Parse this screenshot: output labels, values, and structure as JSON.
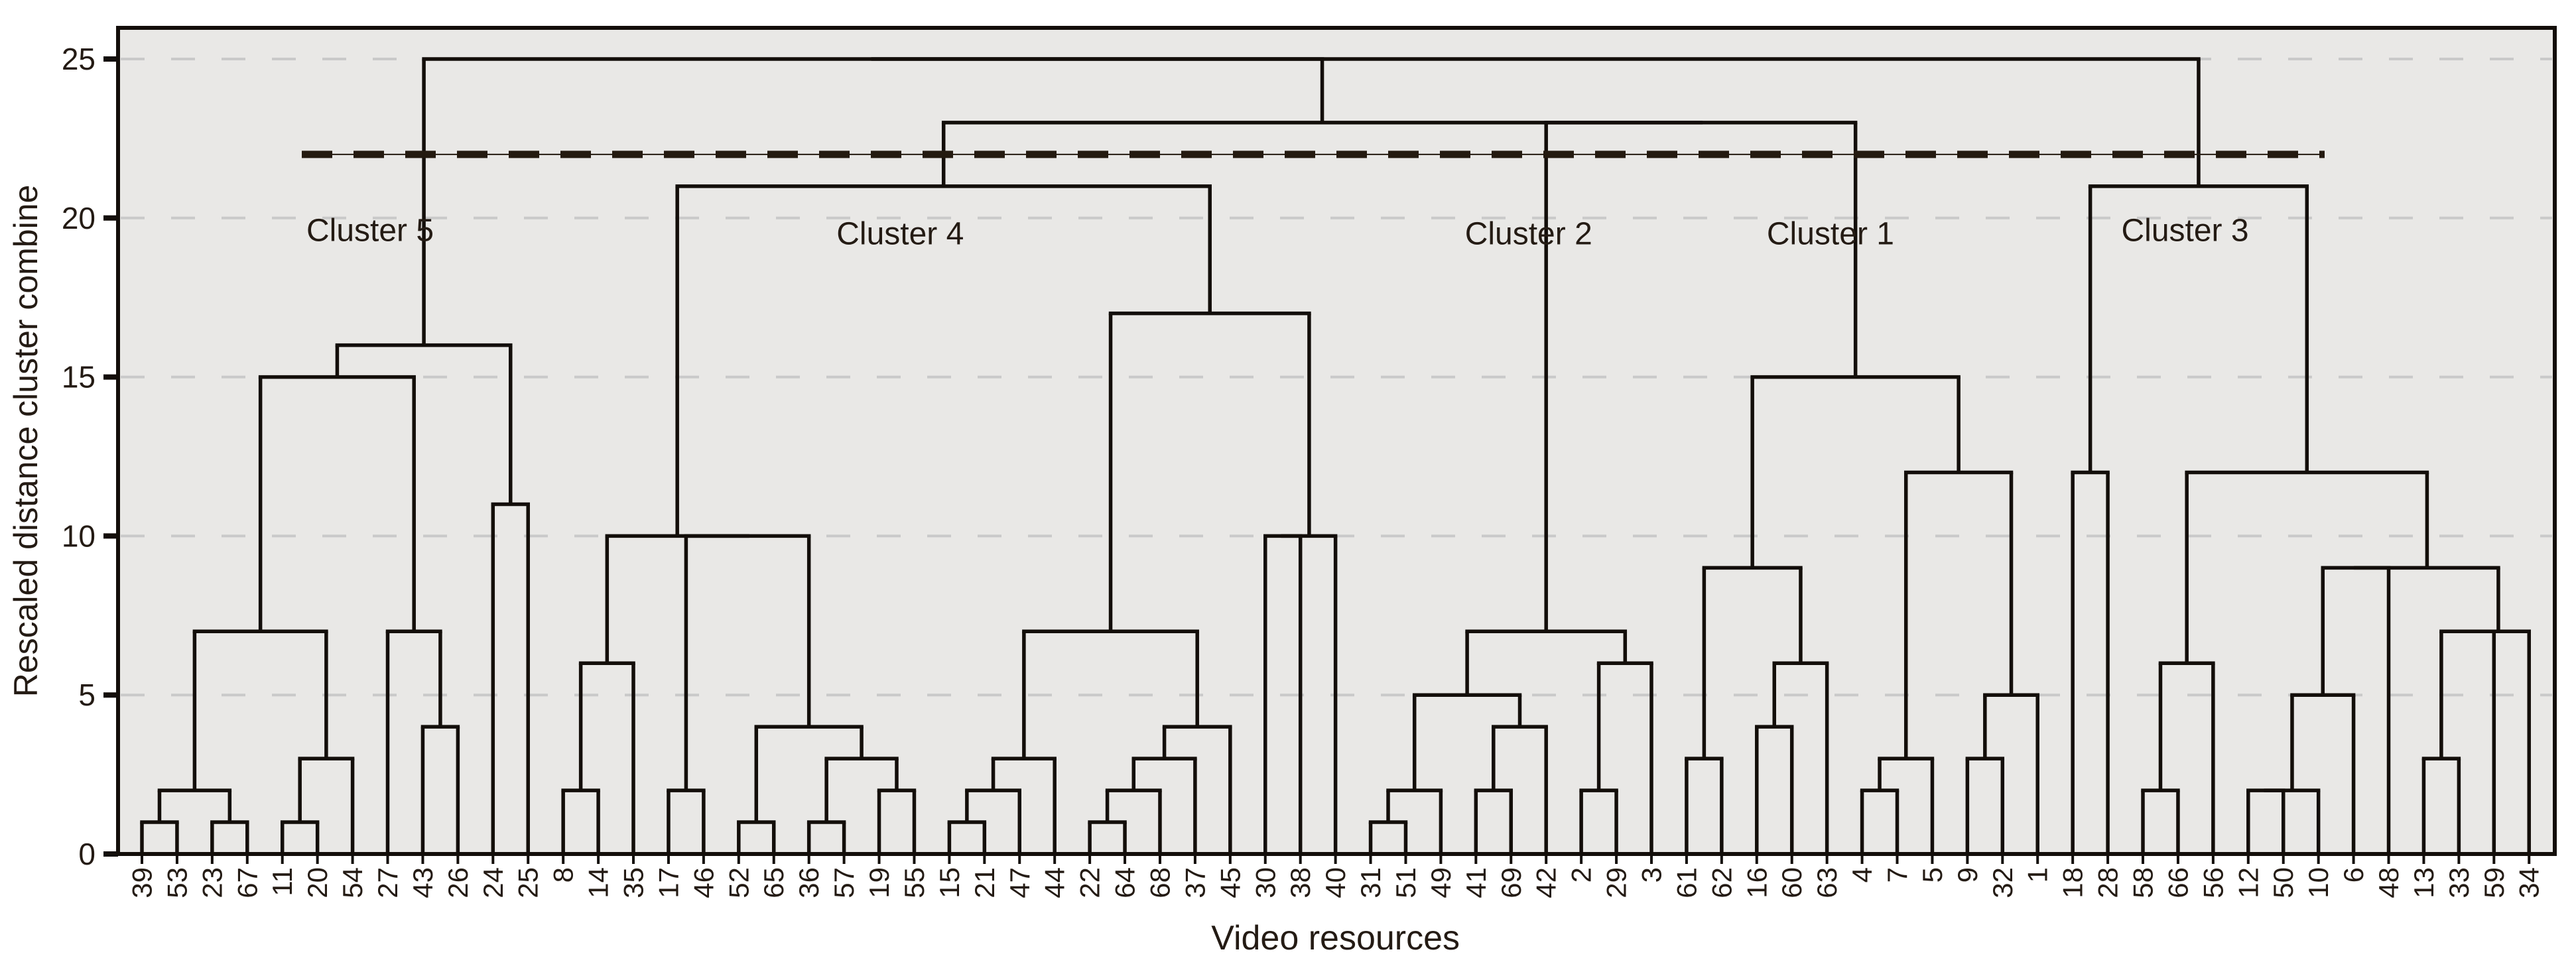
{
  "colors": {
    "plot_background": "#e9e8e6",
    "page_background": "#ffffff",
    "tree_line": "#130e0a",
    "frame_line": "#130e0a",
    "grid_line": "#c9c9c9",
    "cut_line": "#241a10",
    "text": "#241b14"
  },
  "chart_data": {
    "type": "dendrogram",
    "title": "",
    "xlabel": "Video resources",
    "ylabel": "Rescaled distance cluster combine",
    "y_ticks": [
      0,
      5,
      10,
      15,
      20,
      25
    ],
    "ylim": [
      0,
      25
    ],
    "grid_heights": [
      5,
      10,
      15,
      20,
      25
    ],
    "leaves": [
      "39",
      "53",
      "23",
      "67",
      "11",
      "20",
      "54",
      "27",
      "43",
      "26",
      "24",
      "25",
      "8",
      "14",
      "35",
      "17",
      "46",
      "52",
      "65",
      "36",
      "57",
      "19",
      "55",
      "15",
      "21",
      "47",
      "44",
      "22",
      "64",
      "68",
      "37",
      "45",
      "30",
      "38",
      "40",
      "31",
      "51",
      "49",
      "41",
      "69",
      "42",
      "2",
      "29",
      "3",
      "61",
      "62",
      "16",
      "60",
      "63",
      "4",
      "7",
      "5",
      "9",
      "32",
      "1",
      "18",
      "28",
      "58",
      "66",
      "56",
      "12",
      "50",
      "10",
      "6",
      "48",
      "13",
      "33",
      "59",
      "34"
    ],
    "merges": [
      [
        0,
        1,
        1
      ],
      [
        2,
        3,
        1
      ],
      [
        69,
        70,
        2
      ],
      [
        4,
        5,
        1
      ],
      [
        72,
        6,
        3
      ],
      [
        71,
        73,
        7
      ],
      [
        8,
        9,
        4
      ],
      [
        7,
        75,
        7
      ],
      [
        74,
        76,
        15
      ],
      [
        10,
        11,
        11
      ],
      [
        77,
        78,
        16
      ],
      [
        12,
        13,
        2
      ],
      [
        80,
        14,
        6
      ],
      [
        15,
        16,
        2
      ],
      [
        17,
        18,
        1
      ],
      [
        19,
        20,
        1
      ],
      [
        21,
        22,
        2
      ],
      [
        84,
        85,
        3
      ],
      [
        83,
        86,
        4
      ],
      [
        82,
        87,
        10
      ],
      [
        81,
        88,
        10
      ],
      [
        23,
        24,
        1
      ],
      [
        90,
        25,
        2
      ],
      [
        91,
        26,
        3
      ],
      [
        27,
        28,
        1
      ],
      [
        93,
        29,
        2
      ],
      [
        94,
        30,
        3
      ],
      [
        95,
        31,
        4
      ],
      [
        92,
        96,
        7
      ],
      [
        32,
        33,
        10
      ],
      [
        98,
        34,
        10
      ],
      [
        97,
        99,
        17
      ],
      [
        89,
        100,
        21
      ],
      [
        35,
        36,
        1
      ],
      [
        102,
        37,
        2
      ],
      [
        38,
        39,
        2
      ],
      [
        104,
        40,
        4
      ],
      [
        103,
        105,
        5
      ],
      [
        41,
        42,
        2
      ],
      [
        107,
        43,
        6
      ],
      [
        106,
        108,
        7
      ],
      [
        44,
        45,
        3
      ],
      [
        46,
        47,
        4
      ],
      [
        111,
        48,
        6
      ],
      [
        110,
        112,
        9
      ],
      [
        49,
        50,
        2
      ],
      [
        114,
        51,
        3
      ],
      [
        52,
        53,
        3
      ],
      [
        116,
        54,
        5
      ],
      [
        115,
        117,
        12
      ],
      [
        113,
        118,
        15
      ],
      [
        55,
        56,
        12
      ],
      [
        57,
        58,
        2
      ],
      [
        121,
        59,
        6
      ],
      [
        60,
        61,
        2
      ],
      [
        123,
        62,
        2
      ],
      [
        124,
        63,
        5
      ],
      [
        125,
        64,
        9
      ],
      [
        65,
        66,
        3
      ],
      [
        127,
        67,
        7
      ],
      [
        128,
        68,
        7
      ],
      [
        126,
        129,
        9
      ],
      [
        122,
        130,
        12
      ],
      [
        120,
        131,
        21
      ],
      [
        109,
        119,
        23
      ],
      [
        101,
        133,
        23
      ],
      [
        79,
        134,
        25
      ],
      [
        135,
        132,
        25
      ]
    ],
    "cut_line": {
      "height": 22,
      "style": "dashed"
    },
    "cluster_labels": [
      {
        "label": "Cluster 5",
        "leaf_pos": 6.5,
        "height": 19.6
      },
      {
        "label": "Cluster 4",
        "leaf_pos": 21.6,
        "height": 19.5
      },
      {
        "label": "Cluster 2",
        "leaf_pos": 39.5,
        "height": 19.5
      },
      {
        "label": "Cluster 1",
        "leaf_pos": 48.1,
        "height": 19.5
      },
      {
        "label": "Cluster 3",
        "leaf_pos": 58.2,
        "height": 19.6
      }
    ],
    "legend": null,
    "grid": "dashed-horizontal"
  }
}
